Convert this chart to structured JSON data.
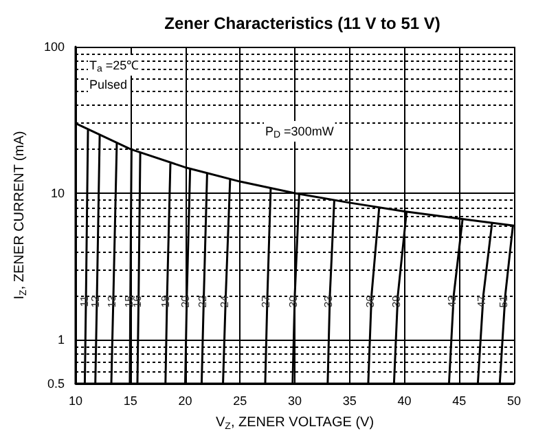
{
  "chart_data": {
    "type": "line",
    "title": "Zener Characteristics (11 V to 51 V)",
    "xlabel": "V$_{Z}$, ZENER VOLTAGE (V)",
    "ylabel": "I$_{Z}$, ZENER CURRENT (mA)",
    "annotations": [
      "T$_{a}$ =25℃",
      "Pulsed",
      "P$_{D}$ =300mW"
    ],
    "log": "y",
    "xlim": [
      10,
      50
    ],
    "xticks": [
      10,
      15,
      20,
      25,
      30,
      35,
      40,
      45,
      50
    ],
    "ylim": [
      0.5,
      100
    ],
    "yticks": [
      0.5,
      1,
      10,
      100
    ],
    "grid": true,
    "legend": false,
    "marker": "none",
    "line_style": "solid",
    "series": [
      {
        "color": "#000000",
        "x": [
          10,
          15,
          20,
          25,
          30,
          35,
          40,
          45,
          50
        ],
        "values": [
          30,
          20,
          15,
          12,
          10,
          8.6,
          7.5,
          6.7,
          6
        ]
      },
      {
        "name": "11",
        "color": "#000000",
        "x": [
          10.84,
          10.95,
          11.13
        ],
        "values": [
          0.5,
          2,
          27
        ]
      },
      {
        "name": "12",
        "color": "#000000",
        "x": [
          11.8,
          11.95,
          12.2
        ],
        "values": [
          0.5,
          2,
          25
        ]
      },
      {
        "name": "13",
        "color": "#000000",
        "x": [
          13.26,
          13.45,
          13.76
        ],
        "values": [
          0.5,
          2,
          22
        ]
      },
      {
        "name": "15",
        "color": "#000000",
        "x": [
          14.95,
          15.0,
          15.1
        ],
        "values": [
          0.5,
          2,
          20
        ]
      },
      {
        "name": "16",
        "color": "#000000",
        "x": [
          15.64,
          15.75,
          15.9
        ],
        "values": [
          0.5,
          2,
          19
        ]
      },
      {
        "name": "18",
        "color": "#000000",
        "x": [
          18.2,
          18.35,
          18.65
        ],
        "values": [
          0.5,
          2,
          16
        ]
      },
      {
        "name": "20",
        "color": "#000000",
        "x": [
          20.0,
          20.15,
          20.45
        ],
        "values": [
          0.5,
          2,
          14.7
        ]
      },
      {
        "name": "22",
        "color": "#000000",
        "x": [
          21.5,
          21.7,
          22.0
        ],
        "values": [
          0.5,
          2,
          13.6
        ]
      },
      {
        "name": "24",
        "color": "#000000",
        "x": [
          23.45,
          23.7,
          24.1
        ],
        "values": [
          0.5,
          2,
          12.5
        ]
      },
      {
        "name": "27",
        "color": "#000000",
        "x": [
          27.3,
          27.5,
          27.8
        ],
        "values": [
          0.5,
          2,
          10.8
        ]
      },
      {
        "name": "30",
        "color": "#000000",
        "x": [
          29.8,
          30.0,
          30.4
        ],
        "values": [
          0.5,
          2,
          9.9
        ]
      },
      {
        "name": "33",
        "color": "#000000",
        "x": [
          33.0,
          33.2,
          33.6
        ],
        "values": [
          0.5,
          2,
          8.9
        ]
      },
      {
        "name": "36",
        "color": "#000000",
        "x": [
          36.7,
          37.0,
          37.7
        ],
        "values": [
          0.5,
          2,
          8.0
        ]
      },
      {
        "name": "39",
        "color": "#000000",
        "x": [
          39.05,
          39.4,
          40.2
        ],
        "values": [
          0.5,
          2,
          7.5
        ]
      },
      {
        "name": "43",
        "color": "#000000",
        "x": [
          44.07,
          44.5,
          45.3
        ],
        "values": [
          0.5,
          2,
          6.6
        ]
      },
      {
        "name": "47",
        "color": "#000000",
        "x": [
          46.7,
          47.2,
          48.0
        ],
        "values": [
          0.5,
          2,
          6.3
        ]
      },
      {
        "name": "51",
        "color": "#000000",
        "x": [
          48.7,
          49.2,
          49.9
        ],
        "values": [
          0.5,
          2,
          6.0
        ]
      }
    ]
  }
}
